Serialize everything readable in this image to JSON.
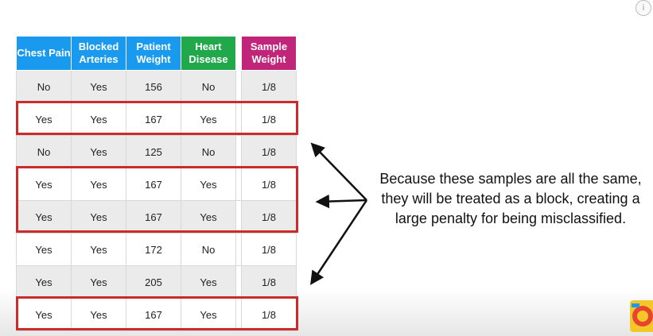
{
  "table": {
    "headers": [
      {
        "label": "Chest Pain",
        "color": "#1a9aef"
      },
      {
        "label": "Blocked Arteries",
        "color": "#1a9aef"
      },
      {
        "label": "Patient Weight",
        "color": "#1a9aef"
      },
      {
        "label": "Heart Disease",
        "color": "#20a84a"
      },
      {
        "label": "Sample Weight",
        "color": "#c1257a"
      }
    ],
    "rows": [
      [
        "No",
        "Yes",
        "156",
        "No",
        "1/8"
      ],
      [
        "Yes",
        "Yes",
        "167",
        "Yes",
        "1/8"
      ],
      [
        "No",
        "Yes",
        "125",
        "No",
        "1/8"
      ],
      [
        "Yes",
        "Yes",
        "167",
        "Yes",
        "1/8"
      ],
      [
        "Yes",
        "Yes",
        "167",
        "Yes",
        "1/8"
      ],
      [
        "Yes",
        "Yes",
        "172",
        "No",
        "1/8"
      ],
      [
        "Yes",
        "Yes",
        "205",
        "Yes",
        "1/8"
      ],
      [
        "Yes",
        "Yes",
        "167",
        "Yes",
        "1/8"
      ]
    ]
  },
  "highlight_color": "#cc2b2b",
  "annotation": {
    "text": "Because these samples are all the same, they will be treated as a block, creating a large penalty for being misclassified."
  },
  "info_icon": {
    "glyph": "i",
    "icon": "info-icon"
  },
  "logo": {
    "icon": "channel-logo-icon"
  }
}
